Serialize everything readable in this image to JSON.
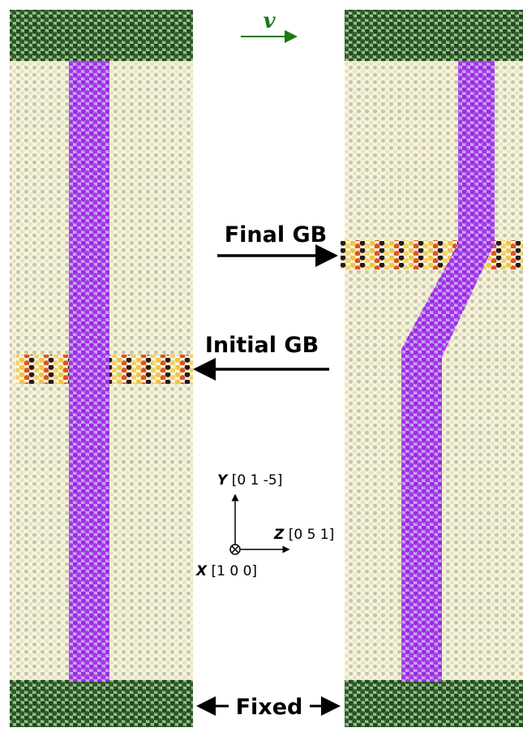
{
  "velocity_label": "v",
  "final_gb": "Final GB",
  "initial_gb": "Initial GB",
  "axes": {
    "y": {
      "letter": "Y",
      "direction": "[0 1 -5]"
    },
    "z": {
      "letter": "Z",
      "direction": "[0 5 1]"
    },
    "x": {
      "letter": "X",
      "direction": "[1 0 0]"
    }
  },
  "fixed": "Fixed"
}
